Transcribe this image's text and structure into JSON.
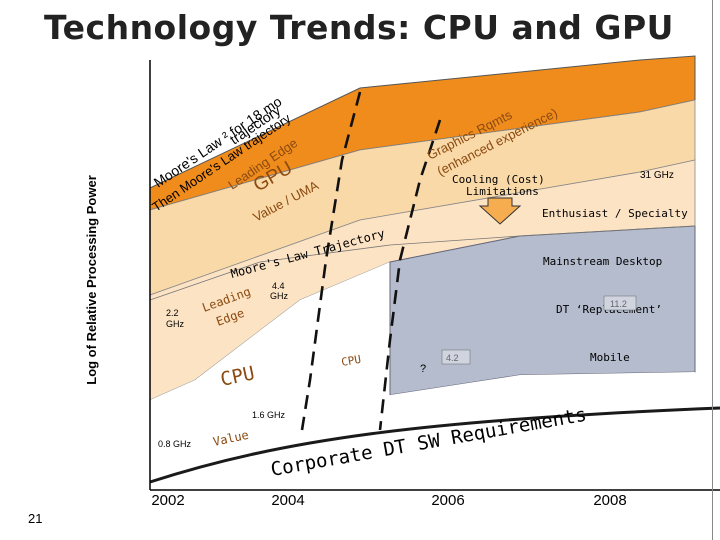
{
  "slide": {
    "title": "Technology Trends: CPU and GPU",
    "page_number": "21"
  },
  "axes": {
    "y_label": "Log of Relative Processing Power",
    "x_ticks": [
      "2002",
      "2004",
      "2006",
      "2008"
    ]
  },
  "gpu_band": {
    "line_upper_a": "Moore's Law ² for 18 mo",
    "line_upper_b": "trajectory",
    "line_lower_a": "Then Moore's Law trajectory",
    "line_lower_b": "Leading Edge",
    "gpu_label": "GPU",
    "value_uma": "Value / UMA",
    "graphics_a": "Graphics Rqmts",
    "graphics_b": "(enhanced experience)",
    "cooling": "Cooling (Cost)",
    "limitations": "Limitations",
    "ghz_31": "31 GHz"
  },
  "segments": {
    "enthusiast": "Enthusiast / Specialty",
    "mainstream": "Mainstream Desktop",
    "dt_replacement": "DT ‘Replacement’",
    "dt_box_value": "11.2",
    "mobile": "Mobile",
    "mobile_box_value": "4.2"
  },
  "cpu_band": {
    "moores_trajectory": "Moore's Law Trajectory",
    "leading": "Leading",
    "edge": "Edge",
    "ghz_44a": "4.4",
    "ghz_44b": "GHz",
    "ghz_22a": "2.2",
    "ghz_22b": "GHz",
    "cpu_label": "CPU",
    "cpu_small": "CPU",
    "question": "?",
    "ghz_16": "1.6 GHz",
    "ghz_08": "0.8 GHz",
    "value": "Value"
  },
  "corporate": "Corporate DT SW Requirements",
  "colors": {
    "orange": "#f08c1c",
    "orange_light": "#fad9a8",
    "cpu_peach": "#fce3c4",
    "grey_blue": "#b4bcce",
    "white_band": "#ffffff",
    "axis": "#000000",
    "arrow_fill": "#f5ad50"
  }
}
